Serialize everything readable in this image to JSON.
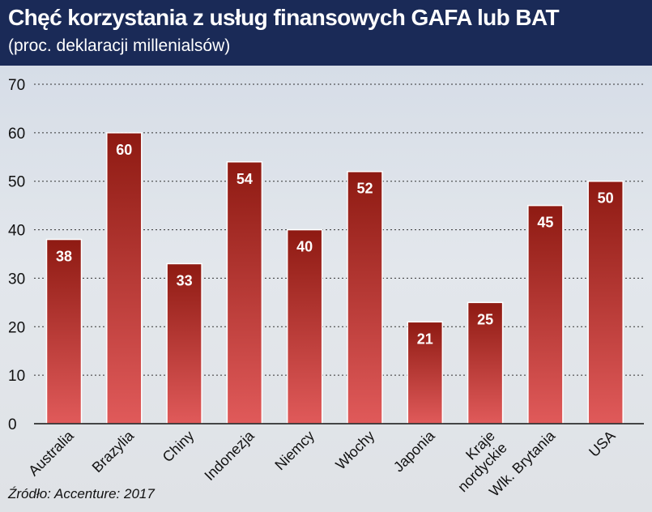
{
  "header": {
    "title": "Chęć korzystania z usług finansowych GAFA lub BAT",
    "subtitle": "(proc. deklaracji millenialsów)"
  },
  "source": "Źródło: Accenture: 2017",
  "colors": {
    "bar_top": "#8e1a12",
    "bar_bottom": "#e05a5a",
    "header": "#1a2a57"
  },
  "chart_data": {
    "type": "bar",
    "title": "Chęć korzystania z usług finansowych GAFA lub BAT",
    "subtitle": "(proc. deklaracji millenialsów)",
    "categories": [
      "Australia",
      "Brazylia",
      "Chiny",
      "Indonezja",
      "Niemcy",
      "Włochy",
      "Japonia",
      "Kraje nordyckie",
      "Wlk. Brytania",
      "USA"
    ],
    "category_lines": [
      [
        "Australia"
      ],
      [
        "Brazylia"
      ],
      [
        "Chiny"
      ],
      [
        "Indonezja"
      ],
      [
        "Niemcy"
      ],
      [
        "Włochy"
      ],
      [
        "Japonia"
      ],
      [
        "Kraje",
        "nordyckie"
      ],
      [
        "Wlk. Brytania"
      ],
      [
        "USA"
      ]
    ],
    "values": [
      38,
      60,
      33,
      54,
      40,
      52,
      21,
      25,
      45,
      50
    ],
    "ylim": [
      0,
      70
    ],
    "yticks": [
      0,
      10,
      20,
      30,
      40,
      50,
      60,
      70
    ],
    "grid": true,
    "data_labels": true
  }
}
